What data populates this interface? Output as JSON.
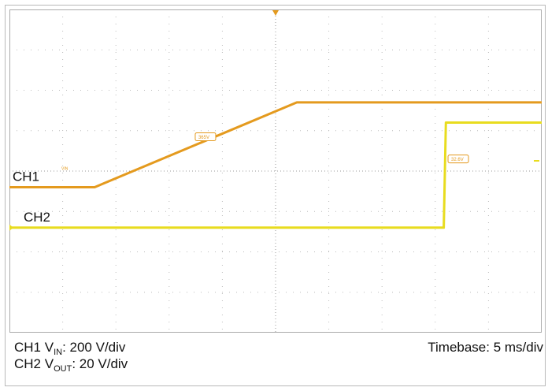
{
  "chart_data": {
    "type": "line",
    "x_unit": "ms",
    "x_range": [
      0,
      50
    ],
    "divisions": {
      "x": 10,
      "y": 8
    },
    "grid": true,
    "series": [
      {
        "name": "CH1",
        "color": "#e49a1e",
        "x": [
          0,
          8,
          27,
          50
        ],
        "y": [
          -0.4,
          -0.4,
          1.7,
          1.7
        ],
        "y_unit": "div"
      },
      {
        "name": "CH2",
        "color": "#e8dc1e",
        "x": [
          0,
          40.8,
          41,
          50
        ],
        "y": [
          -1.4,
          -1.4,
          1.2,
          1.2
        ],
        "y_unit": "div"
      }
    ],
    "marker_labels": {
      "ch1_level": "365V",
      "ch2_level": "32.6V"
    },
    "tiny_label": "VIN"
  },
  "colors": {
    "grid_dot": "#bcbcbc",
    "axis_dot": "#9a9a9a",
    "frame": "#aaaaaa",
    "orange": "#e49a1e",
    "yellow": "#e8dc1e"
  },
  "captions": {
    "ch1_prefix": "CH1 V",
    "ch1_sub": "IN",
    "ch1_suffix": ": 200 V/div",
    "ch2_prefix": "CH2 V",
    "ch2_sub": "OUT",
    "ch2_suffix": ": 20 V/div",
    "timebase": "Timebase: 5 ms/div"
  }
}
